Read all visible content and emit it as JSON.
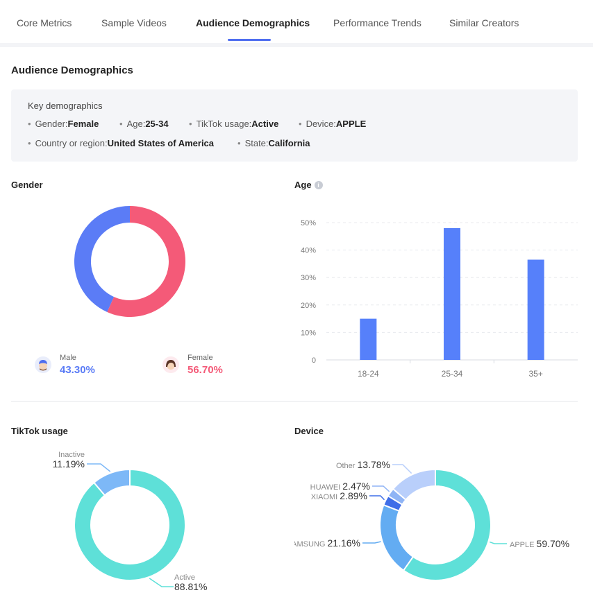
{
  "tabs": [
    {
      "label": "Core Metrics",
      "active": false
    },
    {
      "label": "Sample Videos",
      "active": false
    },
    {
      "label": "Audience Demographics",
      "active": true
    },
    {
      "label": "Performance Trends",
      "active": false
    },
    {
      "label": "Similar Creators",
      "active": false
    }
  ],
  "section_title": "Audience Demographics",
  "key_demographics": {
    "title": "Key demographics",
    "items": [
      {
        "label": "Gender:",
        "value": "Female"
      },
      {
        "label": "Age:",
        "value": "25-34"
      },
      {
        "label": "TikTok usage:",
        "value": "Active"
      },
      {
        "label": "Device:",
        "value": "APPLE"
      },
      {
        "label": "Country or region:",
        "value": "United States of America"
      },
      {
        "label": "State:",
        "value": "California"
      }
    ]
  },
  "colors": {
    "male": "#5b7cf6",
    "female": "#f45a78",
    "bar": "#5680fa",
    "active": "#5ee0d8",
    "inactive": "#7db8f7"
  },
  "chart_data": [
    {
      "type": "pie",
      "title": "Gender",
      "slices": [
        {
          "name": "Male",
          "label": "43.30%",
          "value": 43.3,
          "color": "#5b7cf6",
          "icon": "male-avatar-icon"
        },
        {
          "name": "Female",
          "label": "56.70%",
          "value": 56.7,
          "color": "#f45a78",
          "icon": "female-avatar-icon"
        }
      ]
    },
    {
      "type": "bar",
      "title": "Age",
      "categories": [
        "18-24",
        "25-34",
        "35+"
      ],
      "values": [
        15,
        48,
        36.5
      ],
      "ylim": [
        0,
        50
      ],
      "yticks": [
        "0",
        "10%",
        "20%",
        "30%",
        "40%",
        "50%"
      ],
      "grid": true
    },
    {
      "type": "pie",
      "title": "TikTok usage",
      "slices": [
        {
          "name": "Inactive",
          "label": "11.19%",
          "value": 11.19,
          "color": "#7db8f7"
        },
        {
          "name": "Active",
          "label": "88.81%",
          "value": 88.81,
          "color": "#5ee0d8"
        }
      ]
    },
    {
      "type": "pie",
      "title": "Device",
      "slices": [
        {
          "name": "Other",
          "label": "13.78%",
          "value": 13.78,
          "color": "#b9cffb"
        },
        {
          "name": "HUAWEI",
          "label": "2.47%",
          "value": 2.47,
          "color": "#8fb4f5"
        },
        {
          "name": "XIAOMI",
          "label": "2.89%",
          "value": 2.89,
          "color": "#3f6ee8"
        },
        {
          "name": "SAMSUNG",
          "label": "21.16%",
          "value": 21.16,
          "color": "#63acf2"
        },
        {
          "name": "APPLE",
          "label": "59.70%",
          "value": 59.7,
          "color": "#5ee0d8"
        }
      ]
    }
  ]
}
